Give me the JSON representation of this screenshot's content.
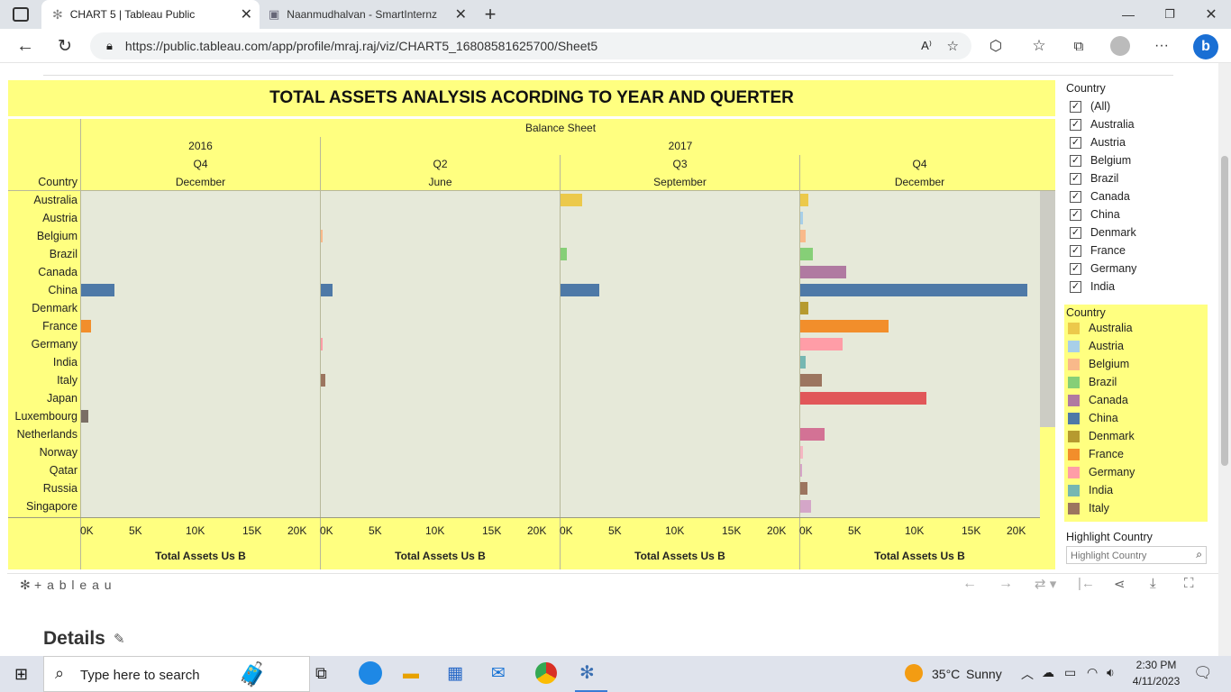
{
  "browser": {
    "tabs": [
      {
        "title": "CHART 5 | Tableau Public",
        "active": true
      },
      {
        "title": "Naanmudhalvan - SmartInternz",
        "active": false
      }
    ],
    "url": "https://public.tableau.com/app/profile/mraj.raj/viz/CHART5_16808581625700/Sheet5"
  },
  "viz": {
    "title": "TOTAL ASSETS ANALYSIS ACORDING TO YEAR AND QUERTER",
    "header_group": "Balance Sheet",
    "row_header": "Country",
    "years": [
      "2016",
      "2017"
    ],
    "panels": [
      {
        "quarter": "Q4",
        "month": "December"
      },
      {
        "quarter": "Q2",
        "month": "June"
      },
      {
        "quarter": "Q3",
        "month": "September"
      },
      {
        "quarter": "Q4",
        "month": "December"
      }
    ],
    "axis_ticks": [
      "0K",
      "5K",
      "10K",
      "15K",
      "20K"
    ],
    "axis_title": "Total Assets Us B"
  },
  "chart_data": {
    "type": "bar",
    "orientation": "horizontal",
    "title": "TOTAL ASSETS ANALYSIS ACORDING TO YEAR AND QUERTER",
    "xlabel": "Total Assets Us B",
    "ylabel": "Country",
    "xlim": [
      0,
      20000
    ],
    "categories": [
      "Australia",
      "Austria",
      "Belgium",
      "Brazil",
      "Canada",
      "China",
      "Denmark",
      "France",
      "Germany",
      "India",
      "Italy",
      "Japan",
      "Luxembourg",
      "Netherlands",
      "Norway",
      "Qatar",
      "Russia",
      "Singapore"
    ],
    "colors": {
      "Australia": "#ecc94b",
      "Austria": "#a8cfe8",
      "Belgium": "#f9b98a",
      "Brazil": "#86cf77",
      "Canada": "#b07aa1",
      "China": "#4e79a7",
      "Denmark": "#b69a2f",
      "France": "#f28e2b",
      "Germany": "#ff9da7",
      "India": "#76b7b2",
      "Italy": "#9c755f",
      "Japan": "#e15759",
      "Luxembourg": "#7a6e65",
      "Netherlands": "#d37295",
      "Norway": "#f4b6c2",
      "Qatar": "#d6a5c9",
      "Russia": "#9c755f",
      "Singapore": "#d4a6c8"
    },
    "series": [
      {
        "name": "2016 Q4 December",
        "values": [
          0,
          0,
          0,
          0,
          0,
          2900,
          0,
          900,
          0,
          0,
          0,
          0,
          600,
          0,
          0,
          0,
          0,
          0
        ]
      },
      {
        "name": "2017 Q2 June",
        "values": [
          0,
          0,
          150,
          0,
          0,
          1000,
          0,
          0,
          150,
          0,
          400,
          0,
          0,
          0,
          0,
          0,
          0,
          0
        ]
      },
      {
        "name": "2017 Q3 September",
        "values": [
          1900,
          0,
          0,
          550,
          0,
          3400,
          0,
          0,
          0,
          0,
          0,
          0,
          0,
          0,
          0,
          0,
          0,
          0
        ]
      },
      {
        "name": "2017 Q4 December",
        "values": [
          750,
          200,
          500,
          1150,
          4050,
          20000,
          750,
          7800,
          3750,
          500,
          1900,
          11100,
          0,
          2150,
          250,
          150,
          650,
          950
        ]
      }
    ]
  },
  "filter": {
    "title": "Country",
    "items": [
      "(All)",
      "Australia",
      "Austria",
      "Belgium",
      "Brazil",
      "Canada",
      "China",
      "Denmark",
      "France",
      "Germany",
      "India"
    ]
  },
  "legend": {
    "title": "Country",
    "items": [
      "Australia",
      "Austria",
      "Belgium",
      "Brazil",
      "Canada",
      "China",
      "Denmark",
      "France",
      "Germany",
      "India",
      "Italy"
    ]
  },
  "highlight": {
    "title": "Highlight Country",
    "placeholder": "Highlight Country"
  },
  "toolbar": {
    "brand": "+ a b l e a u"
  },
  "details": {
    "title": "Details"
  },
  "taskbar": {
    "search_placeholder": "Type here to search",
    "weather_temp": "35°C",
    "weather_text": "Sunny",
    "time": "2:30 PM",
    "date": "4/11/2023"
  }
}
